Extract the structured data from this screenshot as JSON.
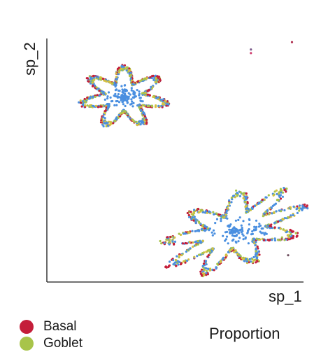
{
  "chart_data": {
    "type": "scatter",
    "xlabel": "sp_1",
    "ylabel": "sp_2",
    "grid": false,
    "legend_placement": "bottom-left",
    "legend": [
      {
        "name": "Basal",
        "color": "#c41e3a"
      },
      {
        "name": "Goblet",
        "color": "#a8c44a"
      }
    ],
    "other_colors": {
      "blue_cells": "#4a8fe0",
      "yellow_cells": "#d4c040"
    },
    "size_legend_title": "Proportion",
    "clusters": [
      {
        "center": [
          3.0,
          7.6
        ],
        "radius": 1.35,
        "lobes": 7
      },
      {
        "center": [
          7.3,
          2.1
        ],
        "radius": 1.6,
        "lobes": 9
      }
    ],
    "outliers": [
      {
        "x": 9.55,
        "y": 9.85,
        "color": "#b03050"
      },
      {
        "x": 7.95,
        "y": 9.55,
        "color": "#7a5a8a"
      },
      {
        "x": 7.95,
        "y": 9.4,
        "color": "#d04070"
      },
      {
        "x": 9.4,
        "y": 1.1,
        "color": "#705060"
      }
    ],
    "xlim": [
      0,
      10
    ],
    "ylim": [
      0,
      10
    ]
  }
}
